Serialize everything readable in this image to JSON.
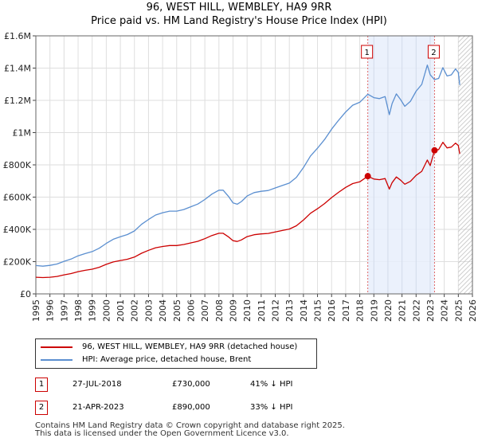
{
  "chart_data": {
    "type": "line",
    "title": "96, WEST HILL, WEMBLEY, HA9 9RR",
    "subtitle": "Price paid vs. HM Land Registry's House Price Index (HPI)",
    "xlim": [
      1995,
      2026
    ],
    "ylim": [
      0,
      1600000
    ],
    "x_ticks": [
      1995,
      1996,
      1997,
      1998,
      1999,
      2000,
      2001,
      2002,
      2003,
      2004,
      2005,
      2006,
      2007,
      2008,
      2009,
      2010,
      2011,
      2012,
      2013,
      2014,
      2015,
      2016,
      2017,
      2018,
      2019,
      2020,
      2021,
      2022,
      2023,
      2024,
      2025,
      2026
    ],
    "y_ticks": [
      {
        "value": 0,
        "label": "£0"
      },
      {
        "value": 200000,
        "label": "£200K"
      },
      {
        "value": 400000,
        "label": "£400K"
      },
      {
        "value": 600000,
        "label": "£600K"
      },
      {
        "value": 800000,
        "label": "£800K"
      },
      {
        "value": 1000000,
        "label": "£1M"
      },
      {
        "value": 1200000,
        "label": "£1.2M"
      },
      {
        "value": 1400000,
        "label": "£1.4M"
      },
      {
        "value": 1600000,
        "label": "£1.6M"
      }
    ],
    "grid": true,
    "shaded_range": {
      "from": 2018.57,
      "to": 2023.31
    },
    "future_hatch_from": 2025.0,
    "series": [
      {
        "name": "96, WEST HILL, WEMBLEY, HA9 9RR (detached house)",
        "color": "#cc0000",
        "points": [
          [
            1995.0,
            103000
          ],
          [
            1995.5,
            101000
          ],
          [
            1996.0,
            103000
          ],
          [
            1996.5,
            108000
          ],
          [
            1997.0,
            118000
          ],
          [
            1997.5,
            126000
          ],
          [
            1998.0,
            138000
          ],
          [
            1998.5,
            146000
          ],
          [
            1999.0,
            153000
          ],
          [
            1999.5,
            165000
          ],
          [
            2000.0,
            183000
          ],
          [
            2000.5,
            198000
          ],
          [
            2001.0,
            207000
          ],
          [
            2001.5,
            215000
          ],
          [
            2002.0,
            228000
          ],
          [
            2002.5,
            252000
          ],
          [
            2003.0,
            270000
          ],
          [
            2003.5,
            286000
          ],
          [
            2004.0,
            294000
          ],
          [
            2004.5,
            300000
          ],
          [
            2005.0,
            300000
          ],
          [
            2005.5,
            306000
          ],
          [
            2006.0,
            316000
          ],
          [
            2006.5,
            326000
          ],
          [
            2007.0,
            342000
          ],
          [
            2007.5,
            362000
          ],
          [
            2008.0,
            376000
          ],
          [
            2008.3,
            376000
          ],
          [
            2008.7,
            352000
          ],
          [
            2009.0,
            330000
          ],
          [
            2009.3,
            325000
          ],
          [
            2009.6,
            335000
          ],
          [
            2010.0,
            355000
          ],
          [
            2010.5,
            367000
          ],
          [
            2011.0,
            372000
          ],
          [
            2011.5,
            375000
          ],
          [
            2012.0,
            384000
          ],
          [
            2012.5,
            393000
          ],
          [
            2013.0,
            402000
          ],
          [
            2013.5,
            422000
          ],
          [
            2014.0,
            458000
          ],
          [
            2014.5,
            500000
          ],
          [
            2015.0,
            528000
          ],
          [
            2015.5,
            560000
          ],
          [
            2016.0,
            597000
          ],
          [
            2016.5,
            630000
          ],
          [
            2017.0,
            660000
          ],
          [
            2017.5,
            684000
          ],
          [
            2018.0,
            695000
          ],
          [
            2018.57,
            730000
          ],
          [
            2019.0,
            712000
          ],
          [
            2019.4,
            708000
          ],
          [
            2019.8,
            715000
          ],
          [
            2020.1,
            650000
          ],
          [
            2020.3,
            690000
          ],
          [
            2020.6,
            725000
          ],
          [
            2020.9,
            705000
          ],
          [
            2021.2,
            680000
          ],
          [
            2021.6,
            698000
          ],
          [
            2022.0,
            735000
          ],
          [
            2022.4,
            760000
          ],
          [
            2022.8,
            830000
          ],
          [
            2023.0,
            795000
          ],
          [
            2023.31,
            890000
          ],
          [
            2023.6,
            895000
          ],
          [
            2023.9,
            940000
          ],
          [
            2024.2,
            905000
          ],
          [
            2024.5,
            910000
          ],
          [
            2024.8,
            935000
          ],
          [
            2025.0,
            920000
          ],
          [
            2025.1,
            868000
          ]
        ]
      },
      {
        "name": "HPI: Average price, detached house, Brent",
        "color": "#5b8fd0",
        "points": [
          [
            1995.0,
            176000
          ],
          [
            1995.5,
            172000
          ],
          [
            1996.0,
            177000
          ],
          [
            1996.5,
            185000
          ],
          [
            1997.0,
            202000
          ],
          [
            1997.5,
            216000
          ],
          [
            1998.0,
            236000
          ],
          [
            1998.5,
            250000
          ],
          [
            1999.0,
            262000
          ],
          [
            1999.5,
            283000
          ],
          [
            2000.0,
            313000
          ],
          [
            2000.5,
            339000
          ],
          [
            2001.0,
            354000
          ],
          [
            2001.5,
            368000
          ],
          [
            2002.0,
            390000
          ],
          [
            2002.5,
            431000
          ],
          [
            2003.0,
            461000
          ],
          [
            2003.5,
            489000
          ],
          [
            2004.0,
            503000
          ],
          [
            2004.5,
            513000
          ],
          [
            2005.0,
            513000
          ],
          [
            2005.5,
            523000
          ],
          [
            2006.0,
            540000
          ],
          [
            2006.5,
            557000
          ],
          [
            2007.0,
            585000
          ],
          [
            2007.5,
            619000
          ],
          [
            2008.0,
            643000
          ],
          [
            2008.3,
            643000
          ],
          [
            2008.7,
            602000
          ],
          [
            2009.0,
            564000
          ],
          [
            2009.3,
            556000
          ],
          [
            2009.6,
            573000
          ],
          [
            2010.0,
            607000
          ],
          [
            2010.5,
            628000
          ],
          [
            2011.0,
            636000
          ],
          [
            2011.5,
            641000
          ],
          [
            2012.0,
            657000
          ],
          [
            2012.5,
            672000
          ],
          [
            2013.0,
            687000
          ],
          [
            2013.5,
            722000
          ],
          [
            2014.0,
            783000
          ],
          [
            2014.5,
            855000
          ],
          [
            2015.0,
            903000
          ],
          [
            2015.5,
            957000
          ],
          [
            2016.0,
            1021000
          ],
          [
            2016.5,
            1077000
          ],
          [
            2017.0,
            1128000
          ],
          [
            2017.5,
            1170000
          ],
          [
            2018.0,
            1188000
          ],
          [
            2018.57,
            1238000
          ],
          [
            2019.0,
            1217000
          ],
          [
            2019.4,
            1211000
          ],
          [
            2019.8,
            1223000
          ],
          [
            2020.1,
            1111000
          ],
          [
            2020.3,
            1180000
          ],
          [
            2020.6,
            1240000
          ],
          [
            2020.9,
            1205000
          ],
          [
            2021.2,
            1163000
          ],
          [
            2021.6,
            1194000
          ],
          [
            2022.0,
            1257000
          ],
          [
            2022.4,
            1299000
          ],
          [
            2022.8,
            1419000
          ],
          [
            2023.0,
            1359000
          ],
          [
            2023.31,
            1329000
          ],
          [
            2023.6,
            1336000
          ],
          [
            2023.9,
            1403000
          ],
          [
            2024.2,
            1351000
          ],
          [
            2024.5,
            1358000
          ],
          [
            2024.8,
            1395000
          ],
          [
            2025.0,
            1373000
          ],
          [
            2025.1,
            1295000
          ]
        ]
      }
    ],
    "sales": [
      {
        "id": "1",
        "date_x": 2018.57,
        "price": 730000,
        "date": "27-JUL-2018",
        "price_label": "£730,000",
        "hpi_delta": "41% ↓ HPI"
      },
      {
        "id": "2",
        "date_x": 2023.31,
        "price": 890000,
        "date": "21-APR-2023",
        "price_label": "£890,000",
        "hpi_delta": "33% ↓ HPI"
      }
    ]
  },
  "legend": {
    "property_label": "96, WEST HILL, WEMBLEY, HA9 9RR (detached house)",
    "hpi_label": "HPI: Average price, detached house, Brent"
  },
  "footer": {
    "line1": "Contains HM Land Registry data © Crown copyright and database right 2025.",
    "line2": "This data is licensed under the Open Government Licence v3.0."
  }
}
